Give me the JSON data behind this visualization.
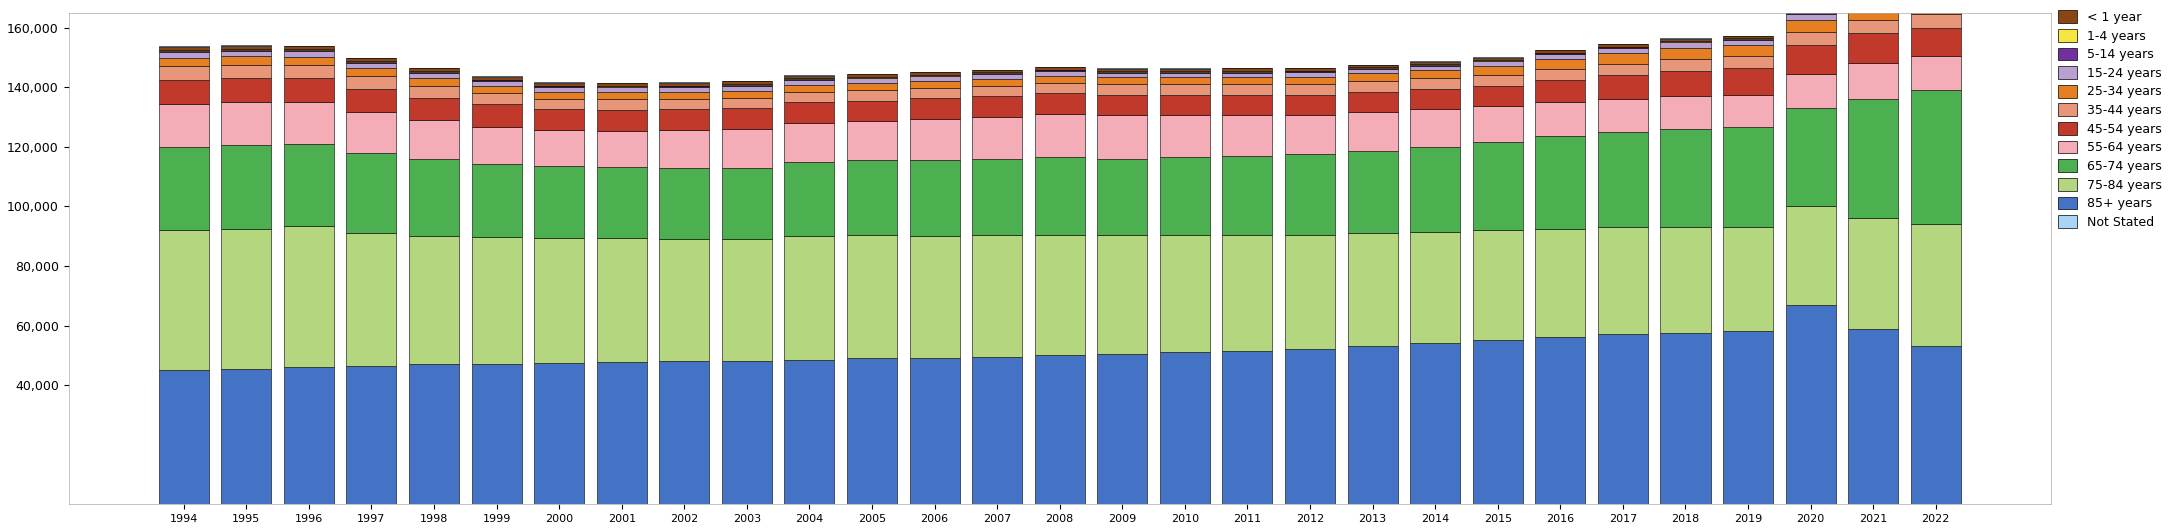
{
  "years": [
    1994,
    1995,
    1996,
    1997,
    1998,
    1999,
    2000,
    2001,
    2002,
    2003,
    2004,
    2005,
    2006,
    2007,
    2008,
    2009,
    2010,
    2011,
    2012,
    2013,
    2014,
    2015,
    2016,
    2017,
    2018,
    2019,
    2020,
    2021,
    2022
  ],
  "plot_order": [
    "85+ years",
    "75-84 years",
    "65-74 years",
    "55-64 years",
    "45-54 years",
    "35-44 years",
    "25-34 years",
    "15-24 years",
    "5-14 years",
    "1-4 years",
    "< 1 year",
    "Not Stated"
  ],
  "plot_colors": {
    "85+ years": "#4472c4",
    "75-84 years": "#b4d67e",
    "65-74 years": "#4caf50",
    "55-64 years": "#f4acb7",
    "45-54 years": "#c0392b",
    "35-44 years": "#e8967a",
    "25-34 years": "#e67e22",
    "15-24 years": "#b8a0d0",
    "5-14 years": "#7030a0",
    "1-4 years": "#f5e642",
    "< 1 year": "#8b4513",
    "Not Stated": "#aad4f5"
  },
  "data": {
    "85+ years": [
      45000,
      45500,
      46000,
      46500,
      47000,
      47200,
      47500,
      47800,
      48000,
      48000,
      48500,
      49000,
      49200,
      49500,
      50000,
      50500,
      51000,
      51500,
      52000,
      53000,
      54000,
      55000,
      56000,
      57000,
      57500,
      58000,
      67000,
      59000,
      53000
    ],
    "75-84 years": [
      47000,
      47000,
      47500,
      44500,
      43000,
      42500,
      42000,
      41500,
      41000,
      41000,
      41500,
      41500,
      41000,
      41000,
      40500,
      40000,
      39500,
      39000,
      38500,
      38000,
      37500,
      37000,
      36500,
      36000,
      35500,
      35000,
      33000,
      37000,
      41000
    ],
    "65-74 years": [
      28000,
      28000,
      27500,
      27000,
      26000,
      24500,
      24000,
      24000,
      24000,
      24000,
      25000,
      25000,
      25500,
      25500,
      26000,
      25500,
      26000,
      26500,
      27000,
      27500,
      28500,
      29500,
      31000,
      32000,
      33000,
      33500,
      33000,
      40000,
      45000
    ],
    "55-64 years": [
      14500,
      14500,
      14000,
      13500,
      13000,
      12500,
      12000,
      12000,
      12500,
      13000,
      13000,
      13000,
      13500,
      14000,
      14500,
      14500,
      14000,
      13500,
      13000,
      13000,
      12500,
      12000,
      11500,
      11000,
      11000,
      11000,
      11500,
      12000,
      11500
    ],
    "45-54 years": [
      8000,
      8000,
      8000,
      8000,
      7500,
      7500,
      7000,
      7000,
      7000,
      7000,
      7000,
      7000,
      7000,
      7000,
      7000,
      7000,
      7000,
      7000,
      7000,
      7000,
      7000,
      7000,
      7500,
      8000,
      8500,
      9000,
      9500,
      10000,
      9500
    ],
    "35-44 years": [
      4500,
      4500,
      4500,
      4200,
      4000,
      3800,
      3600,
      3600,
      3500,
      3500,
      3500,
      3500,
      3500,
      3500,
      3500,
      3500,
      3500,
      3500,
      3500,
      3500,
      3500,
      3600,
      3700,
      3800,
      4000,
      4000,
      4500,
      4500,
      4500
    ],
    "25-34 years": [
      2800,
      2800,
      2700,
      2600,
      2500,
      2400,
      2300,
      2300,
      2300,
      2300,
      2300,
      2300,
      2300,
      2300,
      2300,
      2300,
      2300,
      2400,
      2500,
      2600,
      2700,
      2900,
      3200,
      3500,
      3600,
      3500,
      4000,
      4200,
      4200
    ],
    "15-24 years": [
      2000,
      1900,
      1900,
      1800,
      1700,
      1600,
      1600,
      1700,
      1700,
      1650,
      1600,
      1600,
      1600,
      1600,
      1600,
      1500,
      1500,
      1500,
      1500,
      1500,
      1500,
      1600,
      1700,
      1800,
      1900,
      1900,
      2000,
      2100,
      2100
    ],
    "5-14 years": [
      330,
      320,
      310,
      300,
      290,
      280,
      270,
      270,
      270,
      270,
      265,
      265,
      265,
      265,
      260,
      260,
      260,
      260,
      260,
      260,
      260,
      260,
      260,
      265,
      265,
      265,
      270,
      275,
      280
    ],
    "1-4 years": [
      300,
      290,
      280,
      275,
      270,
      265,
      260,
      255,
      250,
      250,
      250,
      248,
      248,
      248,
      248,
      248,
      248,
      248,
      248,
      248,
      248,
      248,
      248,
      248,
      248,
      248,
      250,
      252,
      255
    ],
    "< 1 year": [
      1200,
      1150,
      1100,
      1050,
      1000,
      980,
      960,
      950,
      940,
      930,
      920,
      910,
      900,
      890,
      880,
      870,
      860,
      850,
      840,
      830,
      820,
      810,
      800,
      790,
      780,
      770,
      760,
      750,
      740
    ],
    "Not Stated": [
      200,
      180,
      160,
      140,
      120,
      120,
      110,
      110,
      110,
      110,
      110,
      110,
      110,
      110,
      110,
      110,
      110,
      110,
      110,
      110,
      110,
      110,
      110,
      110,
      110,
      110,
      110,
      110,
      110
    ]
  },
  "ylim": [
    0,
    165000
  ],
  "yticks": [
    40000,
    60000,
    80000,
    100000,
    120000,
    140000,
    160000
  ],
  "bar_width": 0.8,
  "figsize": [
    21.74,
    5.31
  ],
  "dpi": 100,
  "legend_labels": [
    "< 1 year",
    "1-4 years",
    "5-14 years",
    "15-24 years",
    "25-34 years",
    "35-44 years",
    "45-54 years",
    "55-64 years",
    "65-74 years",
    "75-84 years",
    "85+ years",
    "Not Stated"
  ],
  "legend_colors": [
    "#8b4513",
    "#f5e642",
    "#7030a0",
    "#b8a0d0",
    "#e67e22",
    "#e8967a",
    "#c0392b",
    "#f4acb7",
    "#4caf50",
    "#b4d67e",
    "#4472c4",
    "#aad4f5"
  ]
}
